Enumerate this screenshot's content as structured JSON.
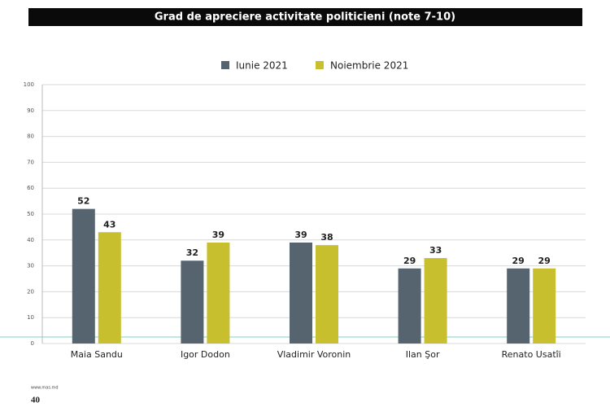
{
  "chart_data": {
    "type": "bar",
    "title": "Grad de apreciere activitate politicieni (note 7-10)",
    "categories": [
      "Maia Sandu",
      "Igor Dodon",
      "Vladimir Voronin",
      "Ilan Şor",
      "Renato Usatîi"
    ],
    "series": [
      {
        "name": "Iunie 2021",
        "color": "#56646f",
        "values": [
          52,
          32,
          39,
          29,
          29
        ]
      },
      {
        "name": "Noiembrie 2021",
        "color": "#c8bf2e",
        "values": [
          43,
          39,
          38,
          33,
          29
        ]
      }
    ],
    "ylim": [
      0,
      100
    ],
    "yticks": [
      0,
      10,
      20,
      30,
      40,
      50,
      60,
      70,
      80,
      90,
      100
    ],
    "grid": true,
    "legend": "top"
  },
  "source": "www.mas.md",
  "page_number": "40"
}
